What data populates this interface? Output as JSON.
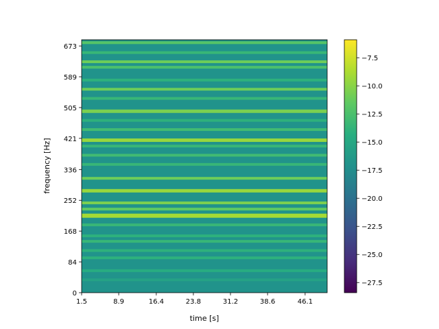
{
  "chart_data": {
    "type": "heatmap",
    "title": "",
    "xlabel": "time [s]",
    "ylabel": "frequency [Hz]",
    "xlim": [
      1.5,
      50.5
    ],
    "ylim": [
      0,
      690
    ],
    "x_ticks": [
      1.5,
      8.9,
      16.4,
      23.8,
      31.2,
      38.6,
      46.1
    ],
    "x_tick_labels": [
      "1.5",
      "8.9",
      "16.4",
      "23.8",
      "31.2",
      "38.6",
      "46.1"
    ],
    "y_ticks": [
      0,
      84,
      168,
      252,
      336,
      421,
      505,
      589,
      673
    ],
    "y_tick_labels": [
      "0",
      "84",
      "168",
      "252",
      "336",
      "421",
      "505",
      "589",
      "673"
    ],
    "colormap": "viridis",
    "colorbar": {
      "range": [
        -28.4,
        -5.9
      ],
      "ticks": [
        -27.5,
        -25.0,
        -22.5,
        -20.0,
        -17.5,
        -15.0,
        -12.5,
        -10.0,
        -7.5
      ],
      "tick_labels": [
        "−27.5",
        "−25.0",
        "−22.5",
        "−20.0",
        "−17.5",
        "−15.0",
        "−12.5",
        "−10.0",
        "−7.5"
      ]
    },
    "background_level": -17.0,
    "bands": [
      {
        "freq": 35,
        "level": -15.5,
        "width": 4
      },
      {
        "freq": 60,
        "level": -14.5,
        "width": 4
      },
      {
        "freq": 95,
        "level": -14.0,
        "width": 4
      },
      {
        "freq": 115,
        "level": -14.0,
        "width": 4
      },
      {
        "freq": 140,
        "level": -13.5,
        "width": 4
      },
      {
        "freq": 155,
        "level": -14.0,
        "width": 4
      },
      {
        "freq": 185,
        "level": -13.5,
        "width": 4
      },
      {
        "freq": 210,
        "level": -9.0,
        "width": 6
      },
      {
        "freq": 228,
        "level": -11.5,
        "width": 4
      },
      {
        "freq": 245,
        "level": -10.5,
        "width": 4
      },
      {
        "freq": 278,
        "level": -9.5,
        "width": 5
      },
      {
        "freq": 312,
        "level": -11.0,
        "width": 4
      },
      {
        "freq": 350,
        "level": -13.5,
        "width": 4
      },
      {
        "freq": 375,
        "level": -13.0,
        "width": 4
      },
      {
        "freq": 400,
        "level": -13.5,
        "width": 4
      },
      {
        "freq": 416,
        "level": -9.5,
        "width": 5
      },
      {
        "freq": 445,
        "level": -13.0,
        "width": 4
      },
      {
        "freq": 470,
        "level": -14.0,
        "width": 4
      },
      {
        "freq": 495,
        "level": -10.5,
        "width": 5
      },
      {
        "freq": 530,
        "level": -13.5,
        "width": 4
      },
      {
        "freq": 555,
        "level": -11.0,
        "width": 4
      },
      {
        "freq": 580,
        "level": -14.0,
        "width": 4
      },
      {
        "freq": 615,
        "level": -12.5,
        "width": 4
      },
      {
        "freq": 630,
        "level": -11.0,
        "width": 4
      },
      {
        "freq": 655,
        "level": -13.5,
        "width": 4
      },
      {
        "freq": 682,
        "level": -12.0,
        "width": 4
      }
    ]
  }
}
